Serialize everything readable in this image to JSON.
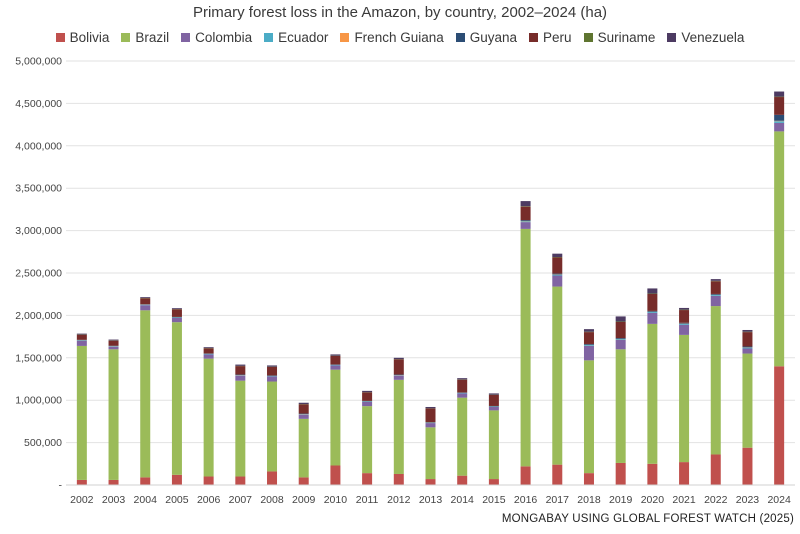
{
  "chart_data": {
    "type": "bar",
    "stacked": true,
    "title": "Primary forest loss in the Amazon, by country, 2002–2024 (ha)",
    "xlabel": "",
    "ylabel": "",
    "ylim": [
      0,
      5000000
    ],
    "yticks": [
      0,
      500000,
      1000000,
      1500000,
      2000000,
      2500000,
      3000000,
      3500000,
      4000000,
      4500000,
      5000000
    ],
    "ytick_labels": [
      "-",
      "500,000",
      "1,000,000",
      "1,500,000",
      "2,000,000",
      "2,500,000",
      "3,000,000",
      "3,500,000",
      "4,000,000",
      "4,500,000",
      "5,000,000"
    ],
    "grid": "horizontal",
    "legend_position": "top",
    "categories": [
      "2002",
      "2003",
      "2004",
      "2005",
      "2006",
      "2007",
      "2008",
      "2009",
      "2010",
      "2011",
      "2012",
      "2013",
      "2014",
      "2015",
      "2016",
      "2017",
      "2018",
      "2019",
      "2020",
      "2021",
      "2022",
      "2023",
      "2024"
    ],
    "series": [
      {
        "name": "Bolivia",
        "color": "#c0504d",
        "values": [
          60000,
          60000,
          90000,
          120000,
          100000,
          100000,
          160000,
          90000,
          230000,
          140000,
          130000,
          70000,
          110000,
          70000,
          220000,
          240000,
          140000,
          260000,
          250000,
          270000,
          360000,
          440000,
          1400000
        ]
      },
      {
        "name": "Brazil",
        "color": "#9bbb59",
        "values": [
          1580000,
          1540000,
          1970000,
          1800000,
          1390000,
          1130000,
          1060000,
          690000,
          1130000,
          790000,
          1110000,
          610000,
          920000,
          810000,
          2800000,
          2100000,
          1330000,
          1340000,
          1650000,
          1500000,
          1750000,
          1110000,
          2770000
        ]
      },
      {
        "name": "Colombia",
        "color": "#8064a2",
        "values": [
          60000,
          30000,
          60000,
          50000,
          50000,
          60000,
          60000,
          50000,
          50000,
          50000,
          50000,
          50000,
          50000,
          40000,
          80000,
          130000,
          170000,
          110000,
          130000,
          120000,
          120000,
          60000,
          100000
        ]
      },
      {
        "name": "Ecuador",
        "color": "#4bacc6",
        "values": [
          5000,
          5000,
          5000,
          5000,
          5000,
          5000,
          5000,
          5000,
          5000,
          5000,
          5000,
          5000,
          5000,
          5000,
          10000,
          10000,
          10000,
          10000,
          10000,
          10000,
          10000,
          10000,
          20000
        ]
      },
      {
        "name": "French Guiana",
        "color": "#f79646",
        "values": [
          2000,
          2000,
          2000,
          2000,
          2000,
          2000,
          2000,
          2000,
          2000,
          2000,
          2000,
          2000,
          2000,
          2000,
          3000,
          3000,
          3000,
          3000,
          3000,
          3000,
          3000,
          3000,
          5000
        ]
      },
      {
        "name": "Guyana",
        "color": "#2c4d75",
        "values": [
          5000,
          5000,
          5000,
          5000,
          5000,
          5000,
          5000,
          5000,
          5000,
          5000,
          5000,
          5000,
          5000,
          5000,
          10000,
          10000,
          10000,
          10000,
          10000,
          10000,
          10000,
          10000,
          70000
        ]
      },
      {
        "name": "Peru",
        "color": "#772c2a",
        "values": [
          60000,
          60000,
          70000,
          90000,
          60000,
          100000,
          100000,
          110000,
          100000,
          100000,
          180000,
          160000,
          150000,
          130000,
          160000,
          190000,
          140000,
          190000,
          200000,
          150000,
          150000,
          170000,
          210000
        ]
      },
      {
        "name": "Suriname",
        "color": "#5f7530",
        "values": [
          3000,
          3000,
          3000,
          3000,
          3000,
          3000,
          3000,
          3000,
          3000,
          3000,
          3000,
          3000,
          3000,
          3000,
          5000,
          5000,
          5000,
          5000,
          5000,
          5000,
          5000,
          5000,
          5000
        ]
      },
      {
        "name": "Venezuela",
        "color": "#4d3b62",
        "values": [
          10000,
          10000,
          10000,
          10000,
          10000,
          15000,
          15000,
          15000,
          15000,
          15000,
          15000,
          15000,
          15000,
          15000,
          60000,
          40000,
          30000,
          60000,
          60000,
          20000,
          20000,
          20000,
          60000
        ]
      }
    ]
  },
  "source_note": "MONGABAY USING GLOBAL FOREST WATCH (2025)"
}
